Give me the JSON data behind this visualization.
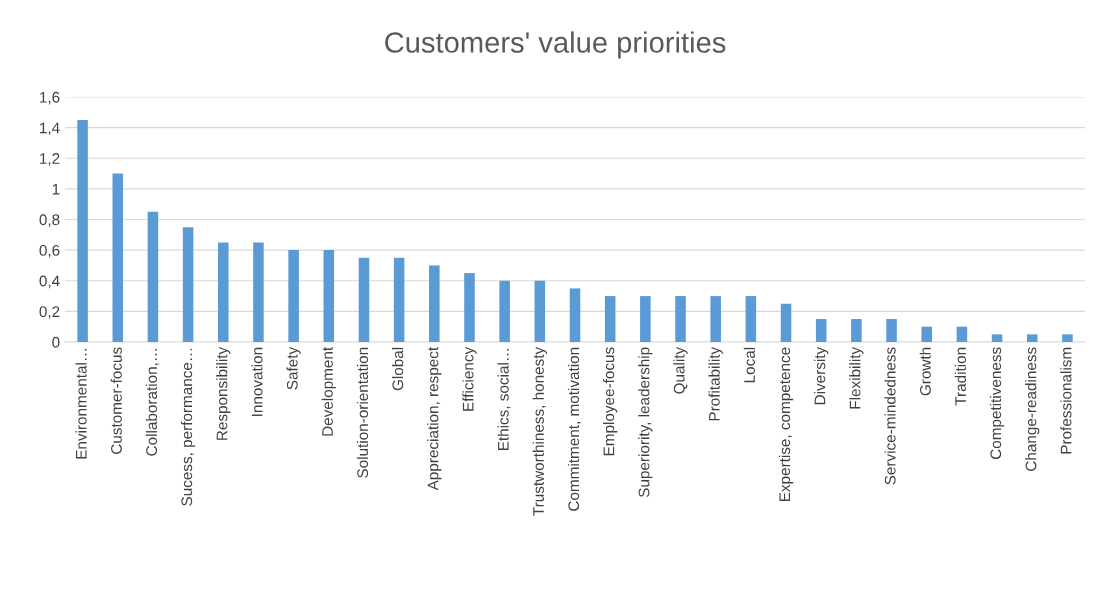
{
  "chart_data": {
    "type": "bar",
    "title": "Customers' value priorities",
    "categories": [
      "Environmental…",
      "Customer-focus",
      "Collaboration,…",
      "Sucess, performance…",
      "Responsibility",
      "Innovation",
      "Safety",
      "Development",
      "Solution-orientation",
      "Global",
      "Appreciation, respect",
      "Efficiency",
      "Ethics, social…",
      "Trustworthiness, honesty",
      "Commitment, motivation",
      "Employee-focus",
      "Superiority, leadership",
      "Quality",
      "Profitability",
      "Local",
      "Expertise, competence",
      "Diversity",
      "Flexibility",
      "Service-mindedness",
      "Growth",
      "Tradition",
      "Competitiveness",
      "Change-readiness",
      "Professionalism"
    ],
    "values": [
      1.45,
      1.1,
      0.85,
      0.75,
      0.65,
      0.65,
      0.6,
      0.6,
      0.55,
      0.55,
      0.5,
      0.45,
      0.4,
      0.4,
      0.35,
      0.3,
      0.3,
      0.3,
      0.3,
      0.3,
      0.25,
      0.15,
      0.15,
      0.15,
      0.1,
      0.1,
      0.05,
      0.05,
      0.05
    ],
    "color": "#5b9bd5",
    "ylim": [
      0,
      1.6
    ],
    "yticks": [
      0,
      {
        "value": 0.2,
        "label": "0,2"
      },
      {
        "value": 0.4,
        "label": "0,4"
      },
      {
        "value": 0.6,
        "label": "0,6"
      },
      {
        "value": 0.8,
        "label": "0,8"
      },
      1,
      {
        "value": 1.2,
        "label": "1,2"
      },
      {
        "value": 1.4,
        "label": "1,4"
      },
      {
        "value": 1.6,
        "label": "1,6"
      }
    ],
    "grid": "y",
    "legend": false
  }
}
